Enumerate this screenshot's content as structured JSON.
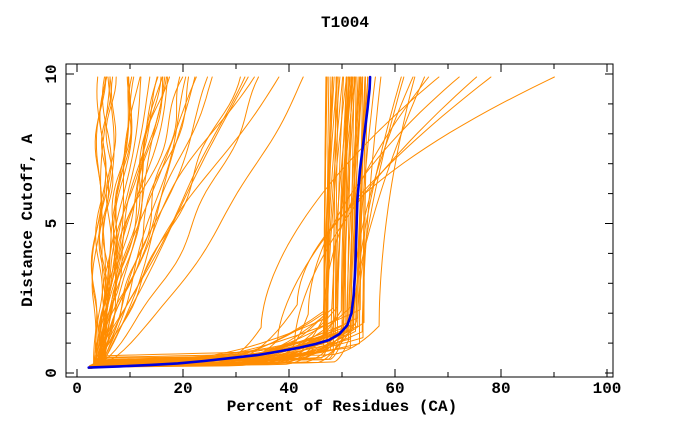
{
  "chart_data": {
    "type": "line",
    "title": "T1004",
    "xlabel": "Percent of Residues (CA)",
    "ylabel": "Distance Cutoff, A",
    "xlim": [
      0,
      100
    ],
    "ylim": [
      0,
      10
    ],
    "grid": false,
    "legend": "none",
    "x_major_ticks": [
      0,
      20,
      40,
      60,
      80,
      100
    ],
    "x_tick_labels": [
      "0",
      "20",
      "40",
      "60",
      "80",
      "100"
    ],
    "x_minor_ticks": [
      10,
      30,
      50,
      70,
      90
    ],
    "y_major_ticks": [
      0,
      5,
      10
    ],
    "y_tick_labels": [
      "0",
      "5",
      "10"
    ],
    "y_minor_ticks": [
      1,
      2,
      3,
      4,
      6,
      7,
      8,
      9
    ],
    "colors": {
      "models": "#FF8C00",
      "highlight": "#0000DD",
      "axis": "#000000",
      "background": "#FFFFFF"
    },
    "highlight_series": {
      "name": "highlighted-model",
      "color": "#0000DD",
      "points": [
        [
          2.2,
          0.18
        ],
        [
          8,
          0.22
        ],
        [
          14,
          0.27
        ],
        [
          19,
          0.32
        ],
        [
          24,
          0.4
        ],
        [
          29,
          0.5
        ],
        [
          34,
          0.6
        ],
        [
          38,
          0.72
        ],
        [
          42,
          0.85
        ],
        [
          45,
          0.97
        ],
        [
          47.5,
          1.1
        ],
        [
          49.5,
          1.3
        ],
        [
          51,
          1.6
        ],
        [
          51.8,
          2.0
        ],
        [
          52.2,
          2.6
        ],
        [
          52.5,
          3.5
        ],
        [
          52.7,
          4.6
        ],
        [
          52.9,
          5.8
        ],
        [
          53.4,
          6.8
        ],
        [
          54.1,
          7.8
        ],
        [
          54.8,
          8.8
        ],
        [
          55.2,
          9.5
        ],
        [
          55.3,
          9.9
        ]
      ]
    },
    "ensemble": {
      "name": "all-models",
      "color": "#FF8C00",
      "curve_count": 98,
      "seed": 11,
      "start_point": [
        2.2,
        0.16
      ],
      "top_cutoff": 9.9,
      "description": "98 orange model curves fan out from about (2.2, 0.2): a dense steep fan topping out near x=4-40, a dense central bundle running along the bottom then turning vertical near x=47-58 (around the blue highlighted model), and sparse right-hand outliers reaching x=60-95",
      "families": [
        {
          "name": "left-fan",
          "count": 42,
          "x_base": [
            3.0,
            5.2
          ],
          "span_max": 38,
          "span_pow": 1.9,
          "shape_pow": [
            0.72,
            1.5
          ],
          "wiggle_amp": [
            0.25,
            1.1
          ]
        },
        {
          "name": "central-bundle",
          "count": 48,
          "bottom_y": [
            0.22,
            0.52
          ],
          "x_turn": [
            15,
            50
          ],
          "x_knee": [
            46.5,
            54.5
          ],
          "knee_y": [
            0.75,
            2.25
          ],
          "lean_max": 4.0,
          "x_top_max": 68
        },
        {
          "name": "right-outliers",
          "count": 8,
          "bottom_y": [
            0.3,
            0.7
          ],
          "x_turn": [
            26,
            48
          ],
          "knee_y": [
            0.9,
            2.5
          ],
          "x_top": [
            61,
            95
          ]
        }
      ]
    }
  }
}
